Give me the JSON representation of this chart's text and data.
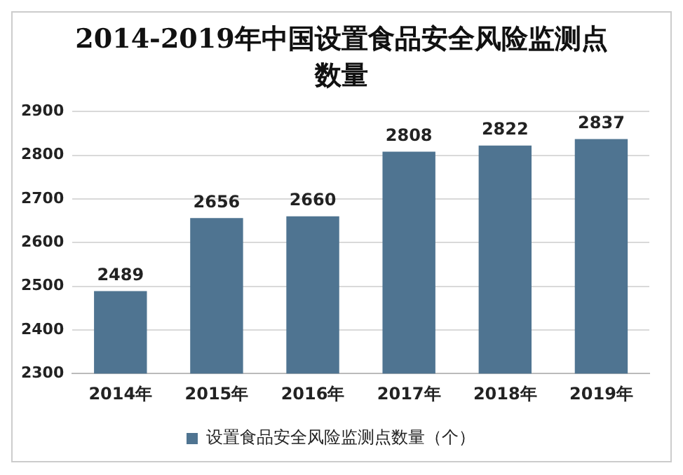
{
  "chart_data": {
    "type": "bar",
    "title": "2014-2019年中国设置食品安全风险监测点数量",
    "categories": [
      "2014年",
      "2015年",
      "2016年",
      "2017年",
      "2018年",
      "2019年"
    ],
    "series": [
      {
        "name": "设置食品安全风险监测点数量（个）",
        "color": "#4f7491",
        "values": [
          2489,
          2656,
          2660,
          2808,
          2822,
          2837
        ]
      }
    ],
    "ylim": [
      2300,
      2900
    ],
    "yticks": [
      2300,
      2400,
      2500,
      2600,
      2700,
      2800,
      2900
    ],
    "grid": "y",
    "legend": "bottom",
    "data_labels": true
  }
}
